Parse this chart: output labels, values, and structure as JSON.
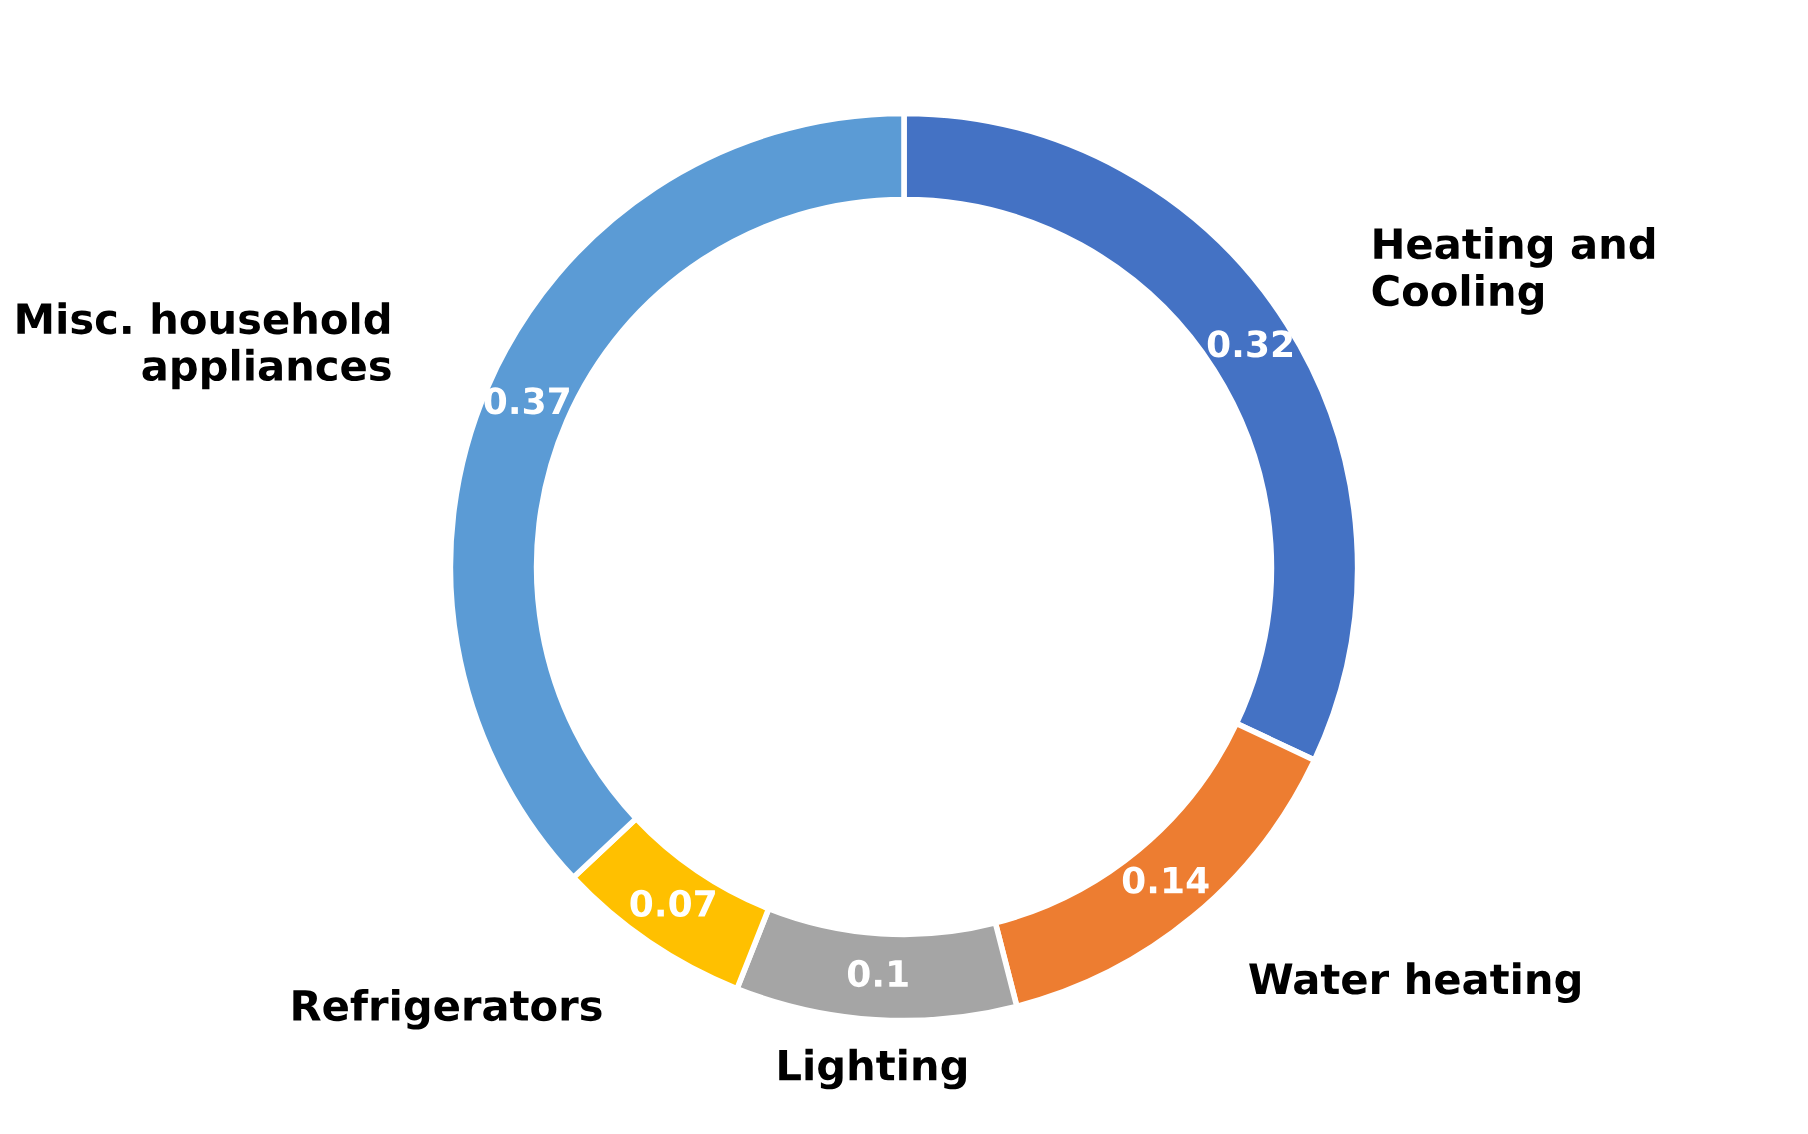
{
  "chart_data": {
    "type": "donut",
    "categories": [
      "Heating and Cooling",
      "Water heating",
      "Lighting",
      "Refrigerators",
      "Misc. household appliances"
    ],
    "values": [
      0.32,
      0.14,
      0.1,
      0.07,
      0.37
    ],
    "colors": [
      "#4472c4",
      "#ed7d31",
      "#a5a5a5",
      "#ffc000",
      "#5b9bd5"
    ],
    "data_labels": true
  }
}
